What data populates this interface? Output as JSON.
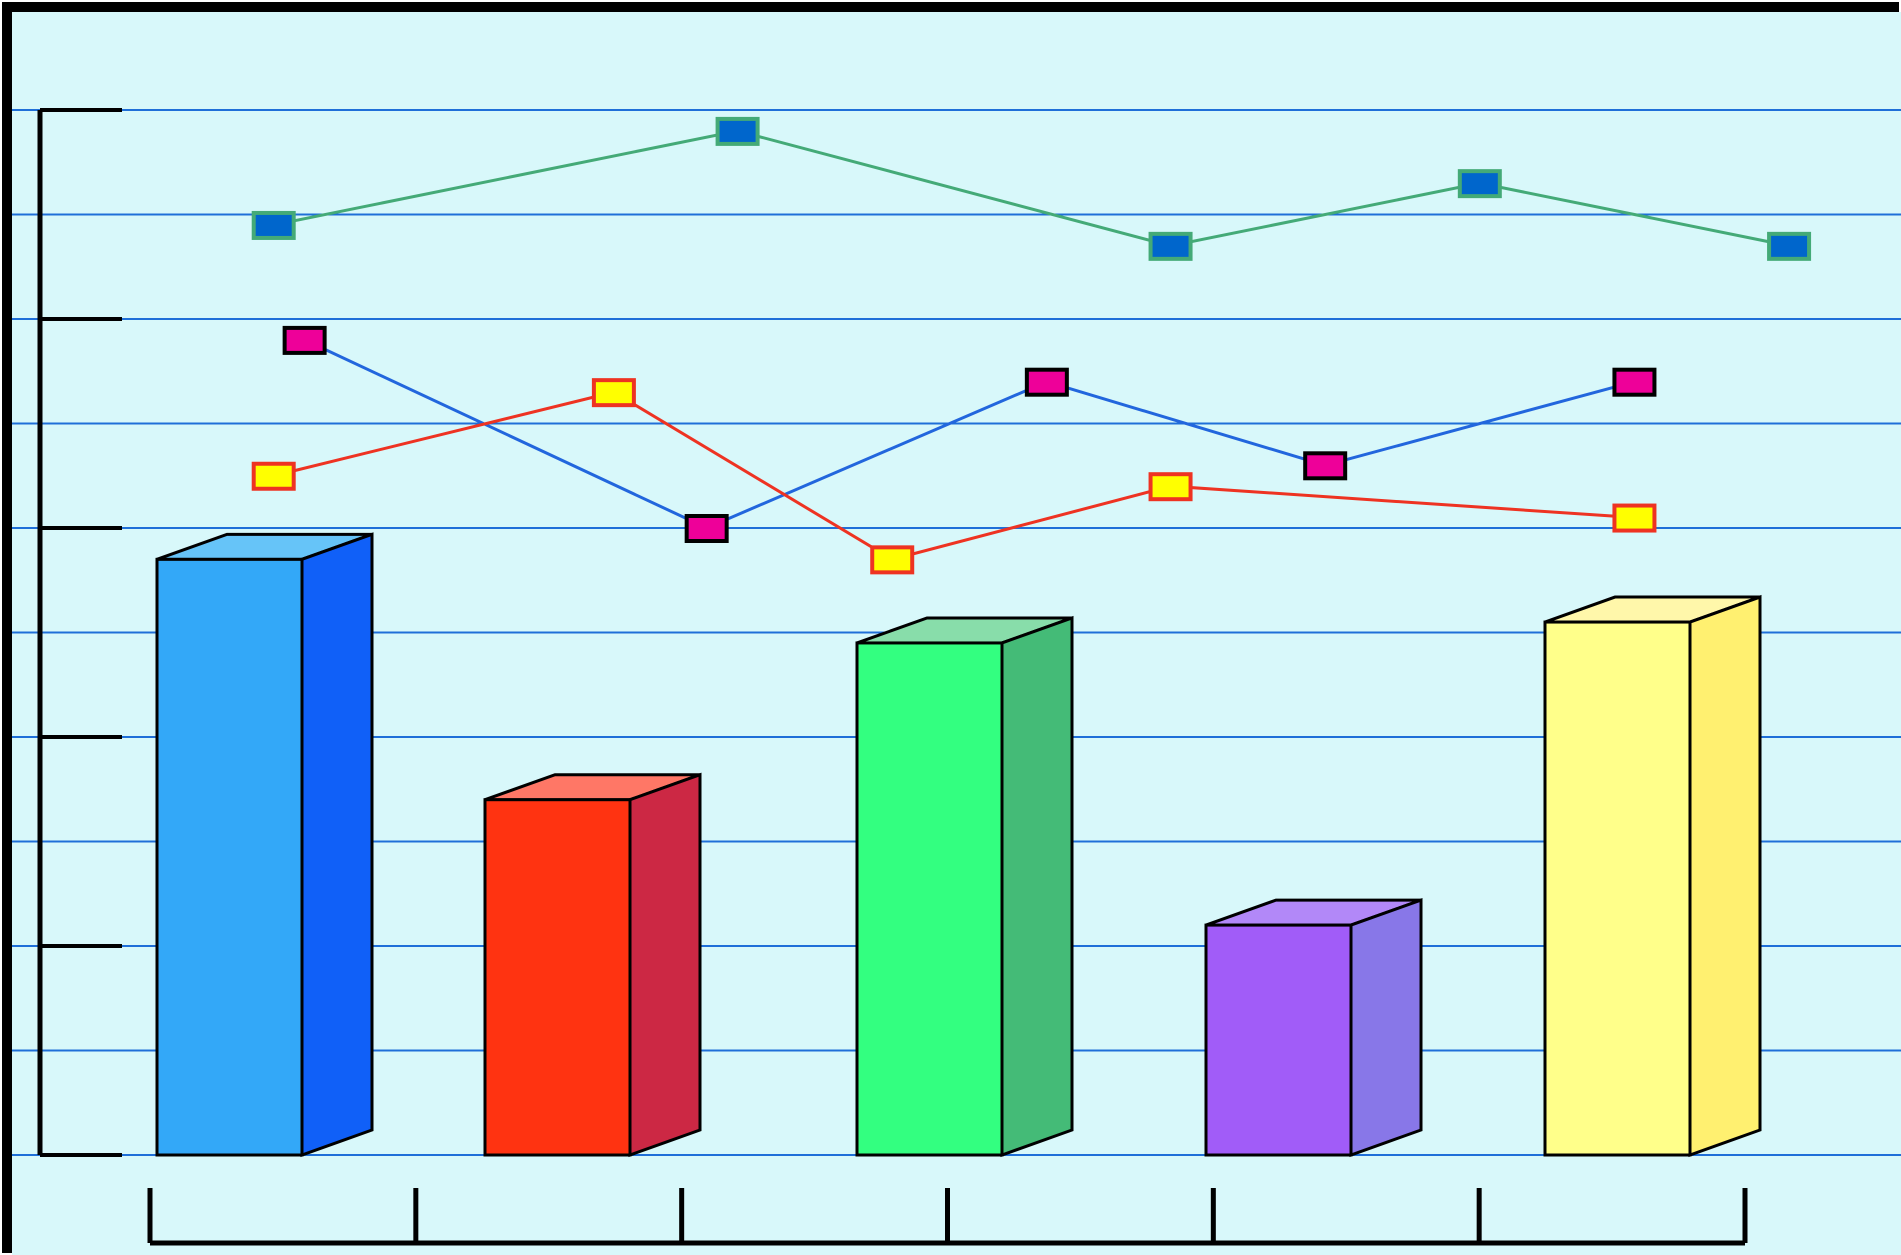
{
  "chart_data": {
    "type": "bar",
    "title": "",
    "xlabel": "",
    "ylabel": "",
    "ylim": [
      0,
      10
    ],
    "grid": true,
    "legend": "none",
    "categories": [
      "",
      "",
      "",
      "",
      ""
    ],
    "series": [
      {
        "kind": "bar",
        "values": [
          5.7,
          3.4,
          4.9,
          2.2,
          5.1
        ],
        "colors": [
          "#33A8F8",
          "#FF3311",
          "#33FF80",
          "#A15CF8",
          "#FFFF8A"
        ],
        "side_colors": [
          "#1060F8",
          "#CC2844",
          "#44BB77",
          "#8877E8",
          "#FFF070"
        ],
        "top_colors": [
          "#66C4F8",
          "#FF7766",
          "#88DDAA",
          "#B288F8",
          "#FFF7AA"
        ]
      },
      {
        "kind": "line",
        "x": [
          0.4,
          1.9,
          3.3,
          4.3,
          5.3
        ],
        "values": [
          8.9,
          9.8,
          8.7,
          9.3,
          8.7
        ],
        "line_color": "#44AA77",
        "marker_fill": "#0066CC",
        "marker_edge": "#44AA77"
      },
      {
        "kind": "line",
        "x": [
          0.5,
          1.8,
          2.9,
          3.8,
          4.8
        ],
        "values": [
          7.8,
          6.0,
          7.4,
          6.6,
          7.4
        ],
        "line_color": "#2266DD",
        "marker_fill": "#EE0099",
        "marker_edge": "#000000"
      },
      {
        "kind": "line",
        "x": [
          0.4,
          1.5,
          2.4,
          3.3,
          4.8
        ],
        "values": [
          6.5,
          7.3,
          5.7,
          6.4,
          6.1
        ],
        "line_color": "#EE3322",
        "marker_fill": "#FFFF00",
        "marker_edge": "#EE3322"
      }
    ]
  }
}
